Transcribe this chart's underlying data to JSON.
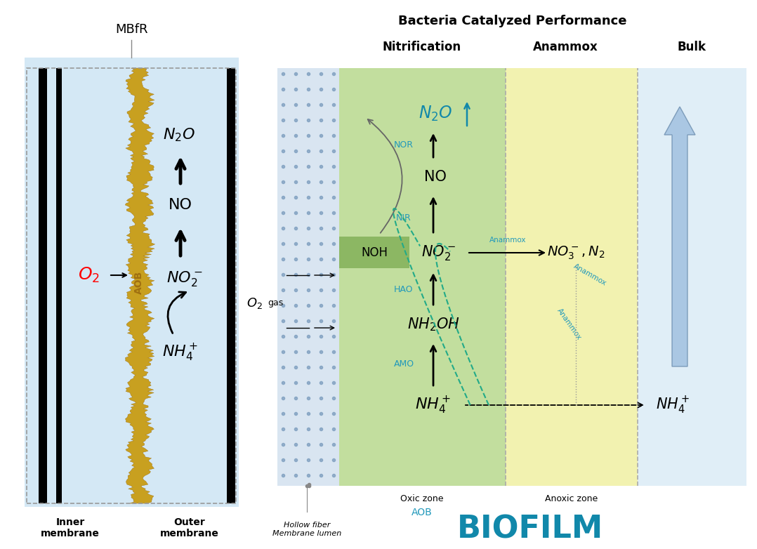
{
  "bg_color": "#ffffff",
  "title_right": "Bacteria Catalyzed Performance",
  "zone_labels": [
    "Nitrification",
    "Anammox",
    "Bulk"
  ],
  "zone_colors": [
    "#b8d98d",
    "#e8e8a0",
    "#dce9f5"
  ],
  "hollow_color": "#b8cfe0",
  "biofilm_color": "#c8a020",
  "membrane_color": "#d4e8f5",
  "cyan_color": "#2299bb",
  "biofilm_text": "AOB",
  "bottom_text": "BIOFILM"
}
